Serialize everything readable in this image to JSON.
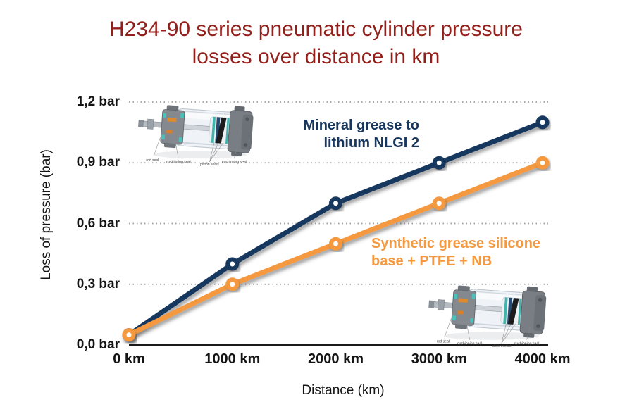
{
  "title": {
    "line1": "H234-90 series pneumatic cylinder pressure",
    "line2": "losses over distance in km"
  },
  "colors": {
    "title_red": "#931f1a",
    "navy": "#17375e",
    "orange": "#f4993f",
    "grid": "#9e9e9e",
    "axis": "#1a1a1a"
  },
  "chart_data": {
    "type": "line",
    "title": "H234-90 series pneumatic cylinder pressure losses over distance in km",
    "x": [
      0,
      1000,
      2000,
      3000,
      4000
    ],
    "x_tick_labels": [
      "0 km",
      "1000 km",
      "2000 km",
      "3000 km",
      "4000 km"
    ],
    "y_ticks": [
      0,
      0.3,
      0.6,
      0.9,
      1.2
    ],
    "y_tick_labels": [
      "0,0 bar",
      "0,3 bar",
      "0,6 bar",
      "0,9 bar",
      "1,2 bar"
    ],
    "xlabel": "Distance (km)",
    "ylabel": "Loss of pressure (bar)",
    "xlim": [
      0,
      4000
    ],
    "ylim": [
      0,
      1.2
    ],
    "grid": "horizontal-dotted",
    "legend_position": "inline-annotations",
    "series": [
      {
        "name": "Mineral grease to lithium NLGI 2",
        "label_lines": [
          "Mineral grease to",
          "lithium NLGI 2"
        ],
        "color": "#17375e",
        "values": [
          0.05,
          0.4,
          0.7,
          0.9,
          1.1
        ]
      },
      {
        "name": "Synthetic grease silicone base + PTFE + NB",
        "label_lines": [
          "Synthetic grease silicone",
          "base + PTFE + NB"
        ],
        "color": "#f4993f",
        "values": [
          0.05,
          0.3,
          0.5,
          0.7,
          0.9
        ]
      }
    ]
  },
  "cylinder_illustration": {
    "labels": [
      "rod seal",
      "cushioning seal",
      "piston seals",
      "cushioning seal"
    ]
  }
}
